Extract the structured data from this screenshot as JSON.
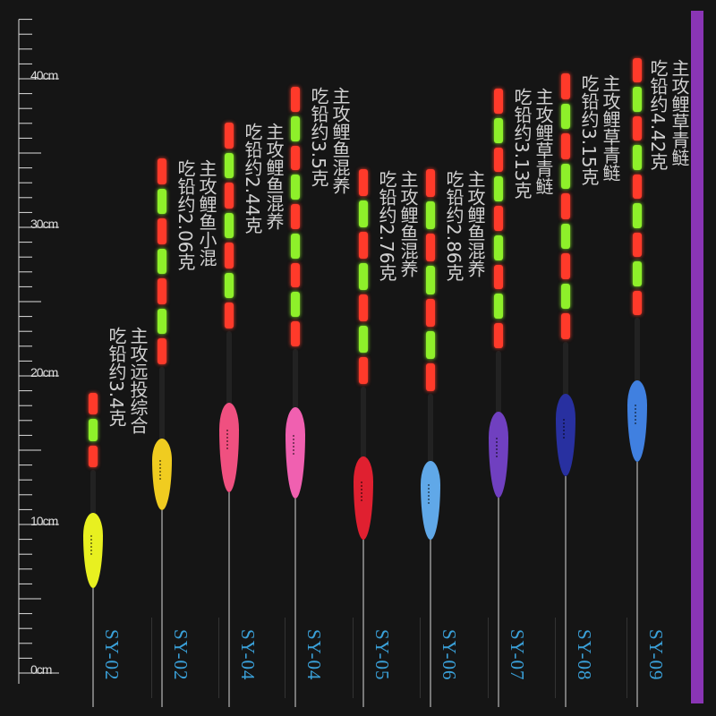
{
  "ruler": {
    "labels": [
      "40cm",
      "30cm",
      "20cm",
      "10cm",
      "0cm"
    ],
    "label_values": [
      40,
      30,
      20,
      10,
      0
    ],
    "max_cm": 44,
    "color": "#dddddd"
  },
  "accent_bar_color": "#8a35b5",
  "model_color": "#3aa0d8",
  "floats": [
    {
      "model": "SY-02",
      "target": "主攻远投综合",
      "lead": "吃铅约3.4克",
      "body_color": "#e8f020",
      "tip_segments": 3
    },
    {
      "model": "SY-02",
      "target": "主攻鲤鱼小混",
      "lead": "吃铅约2.06克",
      "body_color": "#f0cc20",
      "tip_segments": 7
    },
    {
      "model": "SY-04",
      "target": "主攻鲤鱼混养",
      "lead": "吃铅约2.44克",
      "body_color": "#f05080",
      "tip_segments": 7
    },
    {
      "model": "SY-04",
      "target": "主攻鲤鱼混养",
      "lead": "吃铅约3.5克",
      "body_color": "#f060b0",
      "tip_segments": 9
    },
    {
      "model": "SY-05",
      "target": "主攻鲤鱼混养",
      "lead": "吃铅约2.76克",
      "body_color": "#e02030",
      "tip_segments": 7
    },
    {
      "model": "SY-06",
      "target": "主攻鲤鱼混养",
      "lead": "吃铅约2.86克",
      "body_color": "#60a8e8",
      "tip_segments": 7
    },
    {
      "model": "SY-07",
      "target": "主攻鲤草青鲢",
      "lead": "吃铅约3.13克",
      "body_color": "#7040c0",
      "tip_segments": 9
    },
    {
      "model": "SY-08",
      "target": "主攻鲤草青鲢",
      "lead": "吃铅约3.15克",
      "body_color": "#2830a0",
      "tip_segments": 9
    },
    {
      "model": "SY-09",
      "target": "主攻鲤草青鲢",
      "lead": "吃铅约4.42克",
      "body_color": "#4080e0",
      "tip_segments": 9
    }
  ]
}
